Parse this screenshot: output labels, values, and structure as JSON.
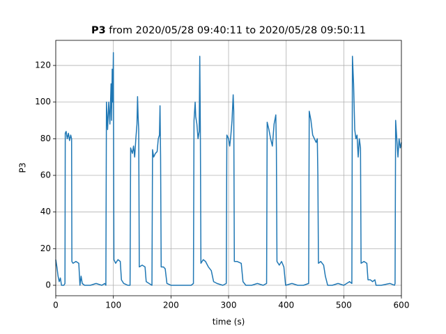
{
  "chart_data": {
    "type": "line",
    "title_bold": "P3",
    "title": "from 2020/05/28 09:40:11 to 2020/05/28 09:50:11",
    "x_label": "time (s)",
    "y_label": "P3",
    "color": "#1f77b4",
    "grid": true,
    "xlim": [
      0,
      600
    ],
    "ylim": [
      -5.7,
      133.7
    ],
    "xticks": [
      0,
      100,
      200,
      300,
      400,
      500,
      600
    ],
    "yticks": [
      0,
      20,
      40,
      60,
      80,
      100,
      120
    ],
    "x": [
      0,
      2,
      4,
      6,
      8,
      10,
      14,
      16,
      16.5,
      18,
      20,
      22,
      24,
      26,
      27.5,
      28,
      30,
      35,
      40,
      42,
      44,
      46,
      50,
      60,
      70,
      80,
      85,
      87,
      88,
      90,
      92,
      94,
      96,
      97,
      98,
      99,
      100,
      101,
      104,
      108,
      112,
      114,
      118,
      125,
      129,
      130,
      133,
      135,
      137,
      139,
      141,
      142,
      143,
      144,
      145,
      150,
      155,
      157,
      162,
      167,
      168,
      170,
      173,
      176,
      178,
      180,
      181,
      182,
      183,
      187,
      190,
      193,
      200,
      210,
      220,
      235,
      239,
      240,
      242,
      243,
      245,
      247,
      249,
      250,
      251,
      252,
      256,
      260,
      265,
      270,
      274,
      280,
      290,
      296,
      297,
      300,
      302,
      304,
      306,
      308,
      309,
      310,
      315,
      322,
      325,
      330,
      340,
      350,
      360,
      366,
      367,
      370,
      373,
      376,
      379,
      382,
      383,
      384,
      388,
      392,
      396,
      399,
      410,
      420,
      430,
      439,
      440,
      443,
      446,
      449,
      452,
      454,
      455,
      456,
      460,
      465,
      468,
      472,
      480,
      490,
      500,
      510,
      514,
      515,
      517,
      519,
      521,
      523,
      525,
      527,
      529,
      530,
      535,
      540,
      542,
      546,
      550,
      554,
      556,
      565,
      580,
      588,
      589,
      590,
      592,
      594,
      596,
      598,
      600
    ],
    "values": [
      14,
      10,
      5,
      2,
      4,
      0,
      0,
      1,
      83,
      84,
      80,
      83,
      79,
      82,
      80,
      13,
      12,
      13,
      12,
      0,
      5,
      1,
      0,
      0,
      1,
      0,
      1,
      0,
      100,
      85,
      100,
      88,
      110,
      90,
      118,
      100,
      127,
      14,
      12,
      14,
      13,
      3,
      1,
      0,
      0,
      75,
      72,
      76,
      70,
      80,
      88,
      103,
      92,
      85,
      10,
      11,
      10,
      2,
      1,
      0,
      74,
      70,
      72,
      73,
      80,
      82,
      98,
      70,
      10,
      10,
      9,
      1,
      0,
      0,
      0,
      0,
      1,
      90,
      100,
      92,
      88,
      80,
      84,
      125,
      86,
      12,
      14,
      13,
      10,
      8,
      2,
      1,
      0,
      1,
      82,
      80,
      76,
      82,
      90,
      104,
      95,
      13,
      13,
      12,
      2,
      0,
      0,
      1,
      0,
      1,
      89,
      85,
      80,
      76,
      88,
      93,
      74,
      13,
      11,
      13,
      10,
      0,
      1,
      0,
      0,
      1,
      95,
      90,
      82,
      80,
      78,
      80,
      60,
      12,
      13,
      11,
      5,
      0,
      0,
      1,
      0,
      2,
      1,
      125,
      110,
      85,
      80,
      82,
      70,
      80,
      75,
      12,
      13,
      12,
      3,
      3,
      2,
      3,
      0,
      0,
      1,
      0,
      1,
      90,
      80,
      70,
      80,
      75,
      78
    ]
  }
}
